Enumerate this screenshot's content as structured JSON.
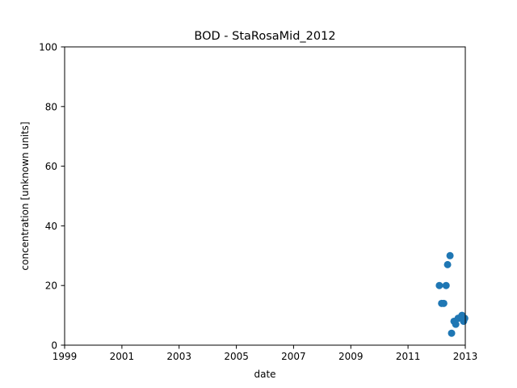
{
  "chart_data": {
    "type": "scatter",
    "title": "BOD - StaRosaMid_2012",
    "xlabel": "date",
    "ylabel": "concentration [unknown units]",
    "xlim": [
      "1999-01-01",
      "2013-01-01"
    ],
    "ylim": [
      0,
      100
    ],
    "x_ticks": [
      "1999",
      "2001",
      "2003",
      "2005",
      "2007",
      "2009",
      "2011",
      "2013"
    ],
    "y_ticks": [
      "0",
      "20",
      "40",
      "60",
      "80",
      "100"
    ],
    "grid": false,
    "legend": "none",
    "marker_color": "#1f77b4",
    "points": [
      {
        "x": "2012-02-05",
        "y": 20
      },
      {
        "x": "2012-03-05",
        "y": 14
      },
      {
        "x": "2012-04-01",
        "y": 14
      },
      {
        "x": "2012-05-01",
        "y": 20
      },
      {
        "x": "2012-05-20",
        "y": 27
      },
      {
        "x": "2012-06-20",
        "y": 30
      },
      {
        "x": "2012-07-10",
        "y": 4
      },
      {
        "x": "2012-08-10",
        "y": 8
      },
      {
        "x": "2012-09-01",
        "y": 7
      },
      {
        "x": "2012-10-01",
        "y": 9
      },
      {
        "x": "2012-11-20",
        "y": 10
      },
      {
        "x": "2012-12-10",
        "y": 8
      },
      {
        "x": "2012-12-25",
        "y": 9
      }
    ]
  }
}
